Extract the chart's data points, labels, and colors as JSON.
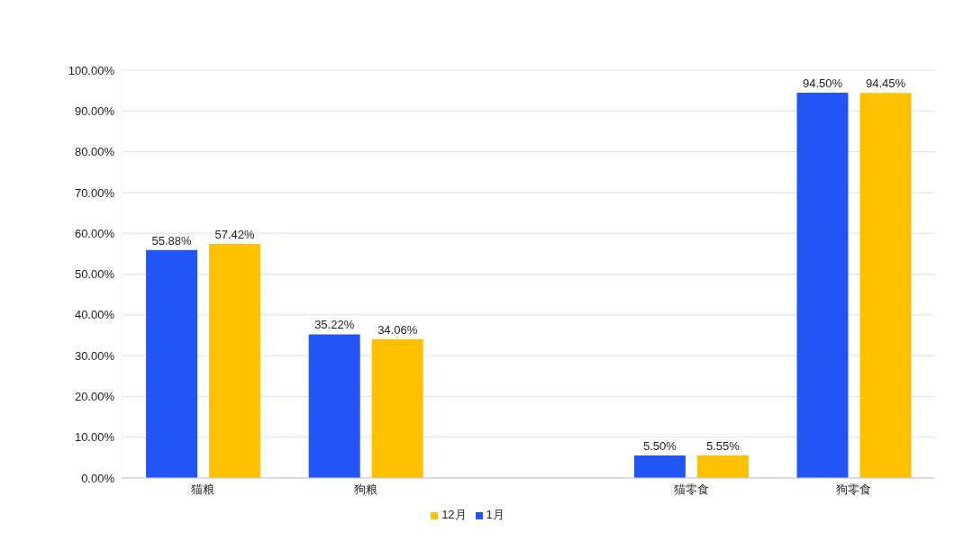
{
  "chart_data": {
    "type": "bar",
    "categories": [
      "猫粮",
      "狗粮",
      null,
      "猫零食",
      "狗零食"
    ],
    "series": [
      {
        "name": "1月",
        "color": "#2255f5",
        "values": [
          55.88,
          35.22,
          null,
          5.5,
          94.5
        ],
        "value_labels": [
          "55.88%",
          "35.22%",
          null,
          "5.50%",
          "94.50%"
        ]
      },
      {
        "name": "12月",
        "color": "#ffc000",
        "values": [
          57.42,
          34.06,
          null,
          5.55,
          94.45
        ],
        "value_labels": [
          "57.42%",
          "34.06%",
          null,
          "5.55%",
          "94.45%"
        ]
      }
    ],
    "ylim": [
      0,
      100
    ],
    "yticks": [
      {
        "value": 0,
        "label": "0.00%"
      },
      {
        "value": 10,
        "label": "10.00%"
      },
      {
        "value": 20,
        "label": "20.00%"
      },
      {
        "value": 30,
        "label": "30.00%"
      },
      {
        "value": 40,
        "label": "40.00%"
      },
      {
        "value": 50,
        "label": "50.00%"
      },
      {
        "value": 60,
        "label": "60.00%"
      },
      {
        "value": 70,
        "label": "70.00%"
      },
      {
        "value": 80,
        "label": "80.00%"
      },
      {
        "value": 90,
        "label": "90.00%"
      },
      {
        "value": 100,
        "label": "100.00%"
      }
    ],
    "grid": "y",
    "legend": "bottom"
  }
}
